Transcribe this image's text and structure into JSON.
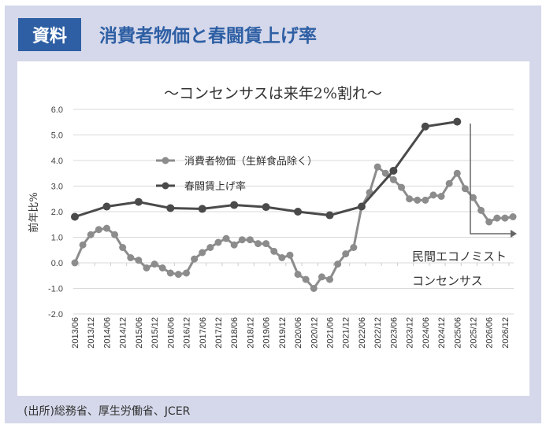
{
  "header": {
    "tag": "資料",
    "title": "消費者物価と春闘賃上げ率"
  },
  "footer": "(出所)総務省、厚生労働省、JCER",
  "chart_data": {
    "type": "line",
    "title": "～コンセンサスは来年2%割れ～",
    "ylabel": "前年比%",
    "xlabel": "",
    "ylim": [
      -2.0,
      6.0
    ],
    "yticks": [
      "6.0",
      "5.0",
      "4.0",
      "3.0",
      "2.0",
      "1.0",
      "0.0",
      "-1.0",
      "-2.0"
    ],
    "grid": true,
    "legend_position": "upper-left-center",
    "x_tick_labels": [
      "2013/06",
      "2013/12",
      "2014/06",
      "2014/12",
      "2015/06",
      "2015/12",
      "2016/06",
      "2016/12",
      "2017/06",
      "2017/12",
      "2018/06",
      "2018/12",
      "2019/06",
      "2019/12",
      "2020/06",
      "2020/12",
      "2021/06",
      "2021/12",
      "2022/06",
      "2022/12",
      "2023/06",
      "2023/12",
      "2024/06",
      "2024/12",
      "2025/06",
      "2025/12",
      "2026/06",
      "2026/12"
    ],
    "x_step": "quarterly from 2013/06",
    "series": [
      {
        "name": "消費者物価（生鮮食品除く）",
        "color": "#8c8c8c",
        "quarter_index_start": 0,
        "values": [
          0.0,
          0.7,
          1.1,
          1.3,
          1.35,
          1.1,
          0.6,
          0.2,
          0.1,
          -0.2,
          -0.05,
          -0.2,
          -0.4,
          -0.45,
          -0.4,
          0.15,
          0.4,
          0.6,
          0.8,
          0.95,
          0.7,
          0.9,
          0.9,
          0.75,
          0.75,
          0.45,
          0.2,
          0.3,
          -0.45,
          -0.65,
          -1.0,
          -0.55,
          -0.65,
          -0.05,
          0.35,
          0.6,
          2.2,
          2.75,
          3.75,
          3.5,
          3.25,
          2.95,
          2.5,
          2.45,
          2.45,
          2.65,
          2.6,
          3.1,
          3.5,
          2.9,
          2.55,
          2.05,
          1.6,
          1.75,
          1.75,
          1.8
        ]
      },
      {
        "name": "春闘賃上げ率",
        "color": "#4a4a4a",
        "quarter_index_step": 4,
        "values": [
          1.8,
          2.2,
          2.38,
          2.14,
          2.11,
          2.26,
          2.18,
          2.0,
          1.86,
          2.2,
          3.6,
          5.33,
          5.52
        ]
      }
    ],
    "annotation": {
      "line1": "民間エコノミスト",
      "line2": "コンセンサス"
    }
  }
}
